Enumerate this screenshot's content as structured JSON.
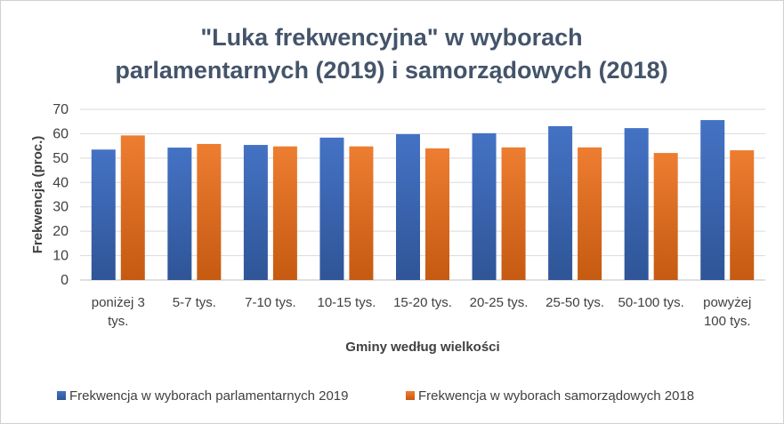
{
  "chart_data": {
    "type": "bar",
    "title_lines": [
      "\"Luka frekwencyjna\" w wyborach",
      "parlamentarnych (2019) i samorządowych (2018)"
    ],
    "xlabel": "Gminy według wielkości",
    "ylabel": "Frekwencja (proc.)",
    "ylim": [
      0,
      70
    ],
    "yticks": [
      0,
      10,
      20,
      30,
      40,
      50,
      60,
      70
    ],
    "grid": true,
    "legend_position": "bottom",
    "categories": [
      [
        "poniżej 3",
        "tys."
      ],
      [
        "5-7 tys."
      ],
      [
        "7-10 tys."
      ],
      [
        "10-15 tys."
      ],
      [
        "15-20 tys."
      ],
      [
        "20-25 tys."
      ],
      [
        "25-50 tys."
      ],
      [
        "50-100 tys."
      ],
      [
        "powyżej",
        "100 tys."
      ]
    ],
    "series": [
      {
        "name": "Frekwencja w wyborach parlamentarnych 2019",
        "color": "#2f5597",
        "color_light": "#4472c4",
        "values": [
          53.5,
          54.3,
          55.4,
          58.4,
          59.8,
          60.2,
          63.1,
          62.3,
          65.6
        ]
      },
      {
        "name": "Frekwencja w wyborach samorządowych 2018",
        "color": "#c55a11",
        "color_light": "#ed7d31",
        "values": [
          59.3,
          55.8,
          54.8,
          54.8,
          54.0,
          54.4,
          54.4,
          52.1,
          53.2
        ]
      }
    ]
  }
}
